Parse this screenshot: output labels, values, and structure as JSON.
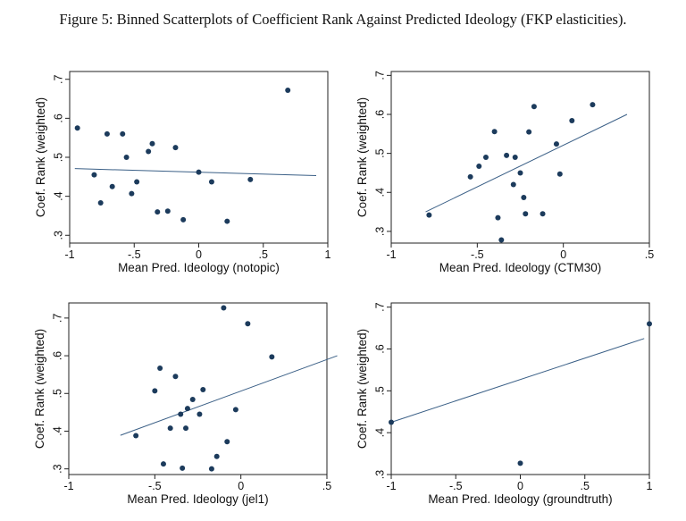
{
  "caption": "Figure 5: Binned Scatterplots of Coefficient Rank Against Predicted Ideology (FKP elasticities).",
  "chart_data": [
    {
      "type": "scatter",
      "xlabel": "Mean Pred. Ideology (notopic)",
      "ylabel": "Coef. Rank (weighted)",
      "xlim": [
        -1,
        1
      ],
      "ylim": [
        0.28,
        0.72
      ],
      "xticks": [
        -1,
        -0.5,
        0,
        0.5,
        1
      ],
      "xtick_labels": [
        "-1",
        "-.5",
        "0",
        ".5",
        "1"
      ],
      "yticks": [
        0.3,
        0.4,
        0.5,
        0.6,
        0.7
      ],
      "ytick_labels": [
        ".3",
        ".4",
        ".5",
        ".6",
        ".7"
      ],
      "points": [
        {
          "x": -0.94,
          "y": 0.575
        },
        {
          "x": -0.81,
          "y": 0.455
        },
        {
          "x": -0.76,
          "y": 0.383
        },
        {
          "x": -0.71,
          "y": 0.56
        },
        {
          "x": -0.67,
          "y": 0.425
        },
        {
          "x": -0.59,
          "y": 0.56
        },
        {
          "x": -0.56,
          "y": 0.5
        },
        {
          "x": -0.52,
          "y": 0.407
        },
        {
          "x": -0.48,
          "y": 0.437
        },
        {
          "x": -0.39,
          "y": 0.515
        },
        {
          "x": -0.36,
          "y": 0.535
        },
        {
          "x": -0.32,
          "y": 0.36
        },
        {
          "x": -0.24,
          "y": 0.362
        },
        {
          "x": -0.18,
          "y": 0.525
        },
        {
          "x": -0.12,
          "y": 0.34
        },
        {
          "x": 0.0,
          "y": 0.462
        },
        {
          "x": 0.1,
          "y": 0.437
        },
        {
          "x": 0.22,
          "y": 0.336
        },
        {
          "x": 0.4,
          "y": 0.443
        },
        {
          "x": 0.69,
          "y": 0.672
        }
      ],
      "fit": {
        "x": [
          -0.96,
          0.91
        ],
        "y": [
          0.471,
          0.453
        ]
      },
      "grid": false
    },
    {
      "type": "scatter",
      "xlabel": "Mean Pred. Ideology (CTM30)",
      "ylabel": "Coef. Rank (weighted)",
      "xlim": [
        -1,
        0.5
      ],
      "ylim": [
        0.27,
        0.71
      ],
      "xticks": [
        -1,
        -0.5,
        0,
        0.5
      ],
      "xtick_labels": [
        "-1",
        "-.5",
        "0",
        ".5"
      ],
      "yticks": [
        0.3,
        0.4,
        0.5,
        0.6,
        0.7
      ],
      "ytick_labels": [
        ".3",
        ".4",
        ".5",
        ".6",
        ".7"
      ],
      "points": [
        {
          "x": -0.78,
          "y": 0.342
        },
        {
          "x": -0.54,
          "y": 0.44
        },
        {
          "x": -0.49,
          "y": 0.467
        },
        {
          "x": -0.45,
          "y": 0.49
        },
        {
          "x": -0.4,
          "y": 0.556
        },
        {
          "x": -0.38,
          "y": 0.335
        },
        {
          "x": -0.36,
          "y": 0.278
        },
        {
          "x": -0.33,
          "y": 0.495
        },
        {
          "x": -0.29,
          "y": 0.42
        },
        {
          "x": -0.28,
          "y": 0.49
        },
        {
          "x": -0.25,
          "y": 0.45
        },
        {
          "x": -0.23,
          "y": 0.387
        },
        {
          "x": -0.22,
          "y": 0.345
        },
        {
          "x": -0.2,
          "y": 0.555
        },
        {
          "x": -0.17,
          "y": 0.62
        },
        {
          "x": -0.12,
          "y": 0.345
        },
        {
          "x": -0.04,
          "y": 0.524
        },
        {
          "x": -0.02,
          "y": 0.447
        },
        {
          "x": 0.05,
          "y": 0.584
        },
        {
          "x": 0.17,
          "y": 0.625
        }
      ],
      "fit": {
        "x": [
          -0.8,
          0.37
        ],
        "y": [
          0.35,
          0.6
        ]
      },
      "grid": false
    },
    {
      "type": "scatter",
      "xlabel": "Mean Pred. Ideology (jel1)",
      "ylabel": "Coef. Rank (weighted)",
      "xlim": [
        -1,
        0.5
      ],
      "ylim": [
        0.285,
        0.74
      ],
      "xticks": [
        -1,
        -0.5,
        0,
        0.5
      ],
      "xtick_labels": [
        "-1",
        "-.5",
        "0",
        ".5"
      ],
      "yticks": [
        0.3,
        0.4,
        0.5,
        0.6,
        0.7
      ],
      "ytick_labels": [
        ".3",
        ".4",
        ".5",
        ".6",
        ".7"
      ],
      "points": [
        {
          "x": -0.61,
          "y": 0.388
        },
        {
          "x": -0.5,
          "y": 0.507
        },
        {
          "x": -0.47,
          "y": 0.567
        },
        {
          "x": -0.45,
          "y": 0.313
        },
        {
          "x": -0.41,
          "y": 0.408
        },
        {
          "x": -0.38,
          "y": 0.545
        },
        {
          "x": -0.35,
          "y": 0.445
        },
        {
          "x": -0.34,
          "y": 0.302
        },
        {
          "x": -0.32,
          "y": 0.408
        },
        {
          "x": -0.31,
          "y": 0.46
        },
        {
          "x": -0.28,
          "y": 0.484
        },
        {
          "x": -0.24,
          "y": 0.445
        },
        {
          "x": -0.22,
          "y": 0.51
        },
        {
          "x": -0.17,
          "y": 0.3
        },
        {
          "x": -0.14,
          "y": 0.333
        },
        {
          "x": -0.1,
          "y": 0.727
        },
        {
          "x": -0.08,
          "y": 0.372
        },
        {
          "x": -0.03,
          "y": 0.457
        },
        {
          "x": 0.04,
          "y": 0.685
        },
        {
          "x": 0.18,
          "y": 0.597
        }
      ],
      "fit": {
        "x": [
          -0.7,
          0.56
        ],
        "y": [
          0.389,
          0.6
        ]
      },
      "grid": false
    },
    {
      "type": "scatter",
      "xlabel": "Mean Pred. Ideology (groundtruth)",
      "ylabel": "Coef. Rank (weighted)",
      "xlim": [
        -1,
        1
      ],
      "ylim": [
        0.3,
        0.71
      ],
      "xticks": [
        -1,
        -0.5,
        0,
        0.5,
        1
      ],
      "xtick_labels": [
        "-1",
        "-.5",
        "0",
        ".5",
        "1"
      ],
      "yticks": [
        0.3,
        0.4,
        0.5,
        0.6,
        0.7
      ],
      "ytick_labels": [
        ".3",
        ".4",
        ".5",
        ".6",
        ".7"
      ],
      "points": [
        {
          "x": -1.0,
          "y": 0.425
        },
        {
          "x": 0.0,
          "y": 0.327
        },
        {
          "x": 1.0,
          "y": 0.66
        }
      ],
      "fit": {
        "x": [
          -1.0,
          0.96
        ],
        "y": [
          0.425,
          0.625
        ]
      },
      "grid": false
    }
  ]
}
